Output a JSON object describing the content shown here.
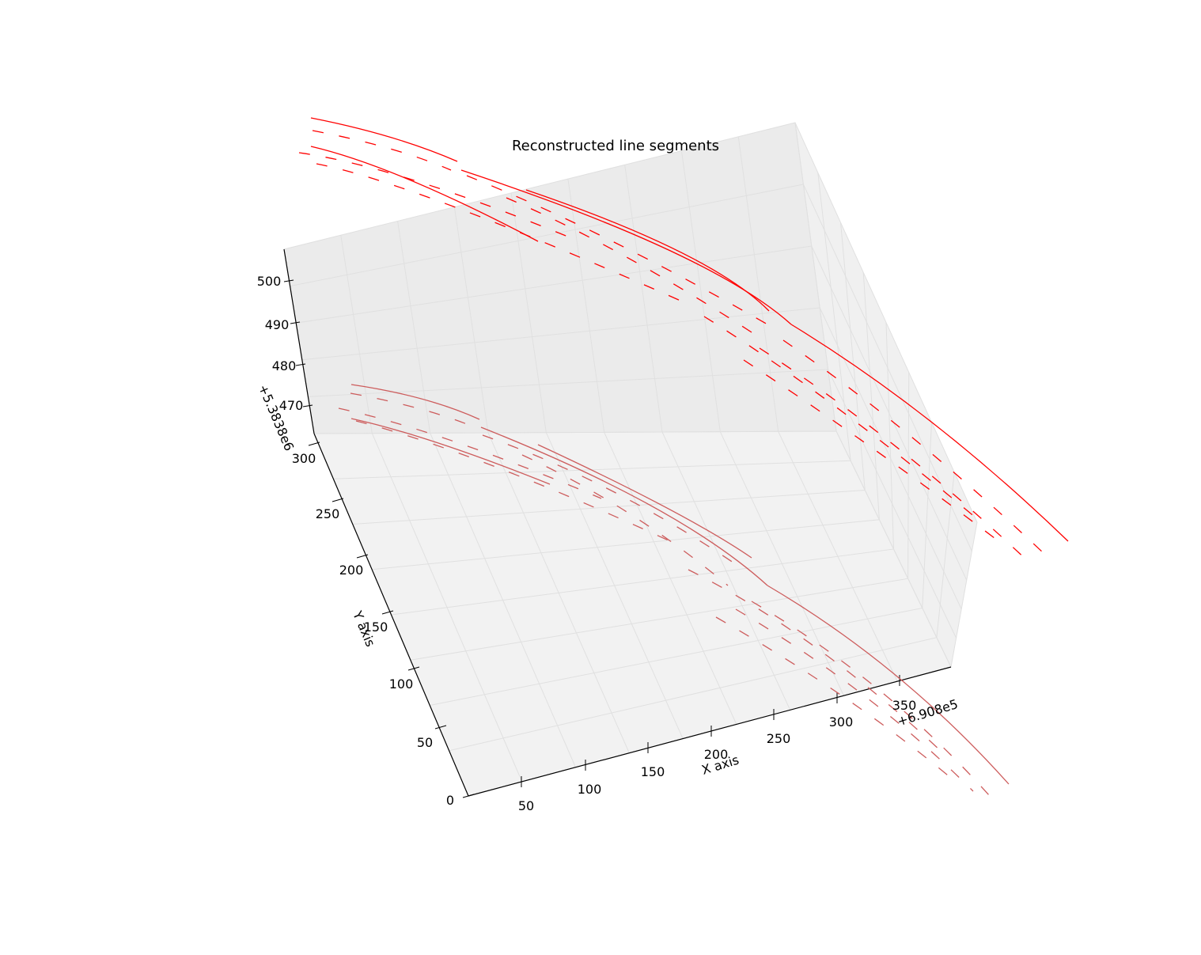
{
  "chart_data": {
    "type": "line3d",
    "title": "Reconstructed line segments",
    "xlabel": "X axis",
    "ylabel": "Y axis",
    "x_offset_label": "+6.908e5",
    "z_offset_label": "+5.3838e6",
    "x_ticks": [
      "50",
      "100",
      "150",
      "200",
      "250",
      "300",
      "350"
    ],
    "y_ticks": [
      "0",
      "50",
      "100",
      "150",
      "200",
      "250",
      "300"
    ],
    "z_ticks": [
      "470",
      "480",
      "490",
      "500"
    ],
    "grid": true,
    "colors": {
      "upper_segments": "#ff0000",
      "lower_segments": "#cd5c5c",
      "pane_back": "#ebebeb",
      "pane_floor": "#f2f2f2",
      "grid": "#e0e0e0"
    },
    "series": [
      {
        "group": "upper",
        "style": "solid",
        "lines": 4
      },
      {
        "group": "upper",
        "style": "dashed",
        "lines": 8
      },
      {
        "group": "lower",
        "style": "solid",
        "lines": 4
      },
      {
        "group": "lower",
        "style": "dashed",
        "lines": 8
      }
    ]
  }
}
